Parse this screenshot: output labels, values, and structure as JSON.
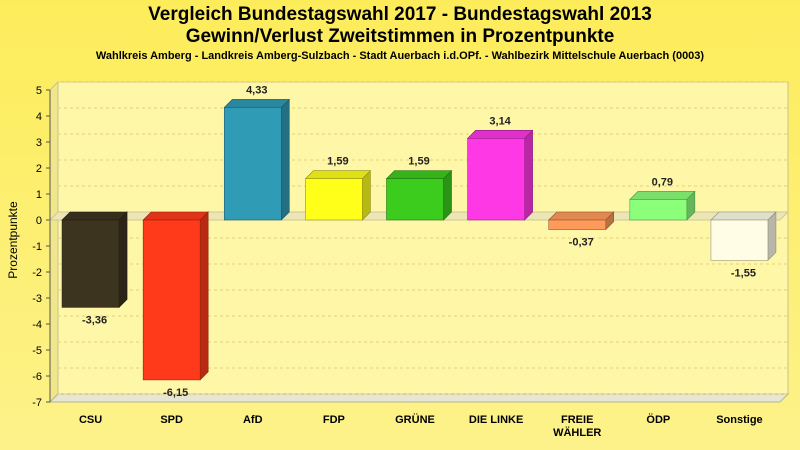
{
  "chart_data": {
    "type": "bar",
    "title": "Vergleich Bundestagswahl 2017 - Bundestagswahl 2013",
    "title_line2": "Gewinn/Verlust Zweitstimmen in Prozentpunkte",
    "subtitle": "Wahlkreis Amberg - Landkreis Amberg-Sulzbach - Stadt Auerbach i.d.OPf. - Wahlbezirk Mittelschule Auerbach (0003)",
    "ylabel": "Prozentpunkte",
    "xlabel": "",
    "ylim": [
      -7,
      5
    ],
    "yticks": [
      "5",
      "4",
      "3",
      "2",
      "1",
      "0",
      "-1",
      "-2",
      "-3",
      "-4",
      "-5",
      "-6",
      "-7"
    ],
    "ytick_values": [
      5,
      4,
      3,
      2,
      1,
      0,
      -1,
      -2,
      -3,
      -4,
      -5,
      -6,
      -7
    ],
    "grid": true,
    "categories": [
      "CSU",
      "SPD",
      "AfD",
      "FDP",
      "GRÜNE",
      "DIE LINKE",
      "FREIE WÄHLER",
      "ÖDP",
      "Sonstige"
    ],
    "category_labels": [
      [
        "CSU"
      ],
      [
        "SPD"
      ],
      [
        "AfD"
      ],
      [
        "FDP"
      ],
      [
        "GRÜNE"
      ],
      [
        "DIE LINKE"
      ],
      [
        "FREIE",
        "WÄHLER"
      ],
      [
        "ÖDP"
      ],
      [
        "Sonstige"
      ]
    ],
    "values": [
      -3.36,
      -6.15,
      4.33,
      1.59,
      1.59,
      3.14,
      -0.37,
      0.79,
      -1.55
    ],
    "value_labels": [
      "-3,36",
      "-6,15",
      "4,33",
      "1,59",
      "1,59",
      "3,14",
      "-0,37",
      "0,79",
      "-1,55"
    ],
    "colors": [
      "#3d3420",
      "#ff3a1a",
      "#2f9bb5",
      "#ffff1a",
      "#3ccc1e",
      "#ff38e6",
      "#ff9a5a",
      "#8cff7a",
      "#fffde6"
    ]
  }
}
